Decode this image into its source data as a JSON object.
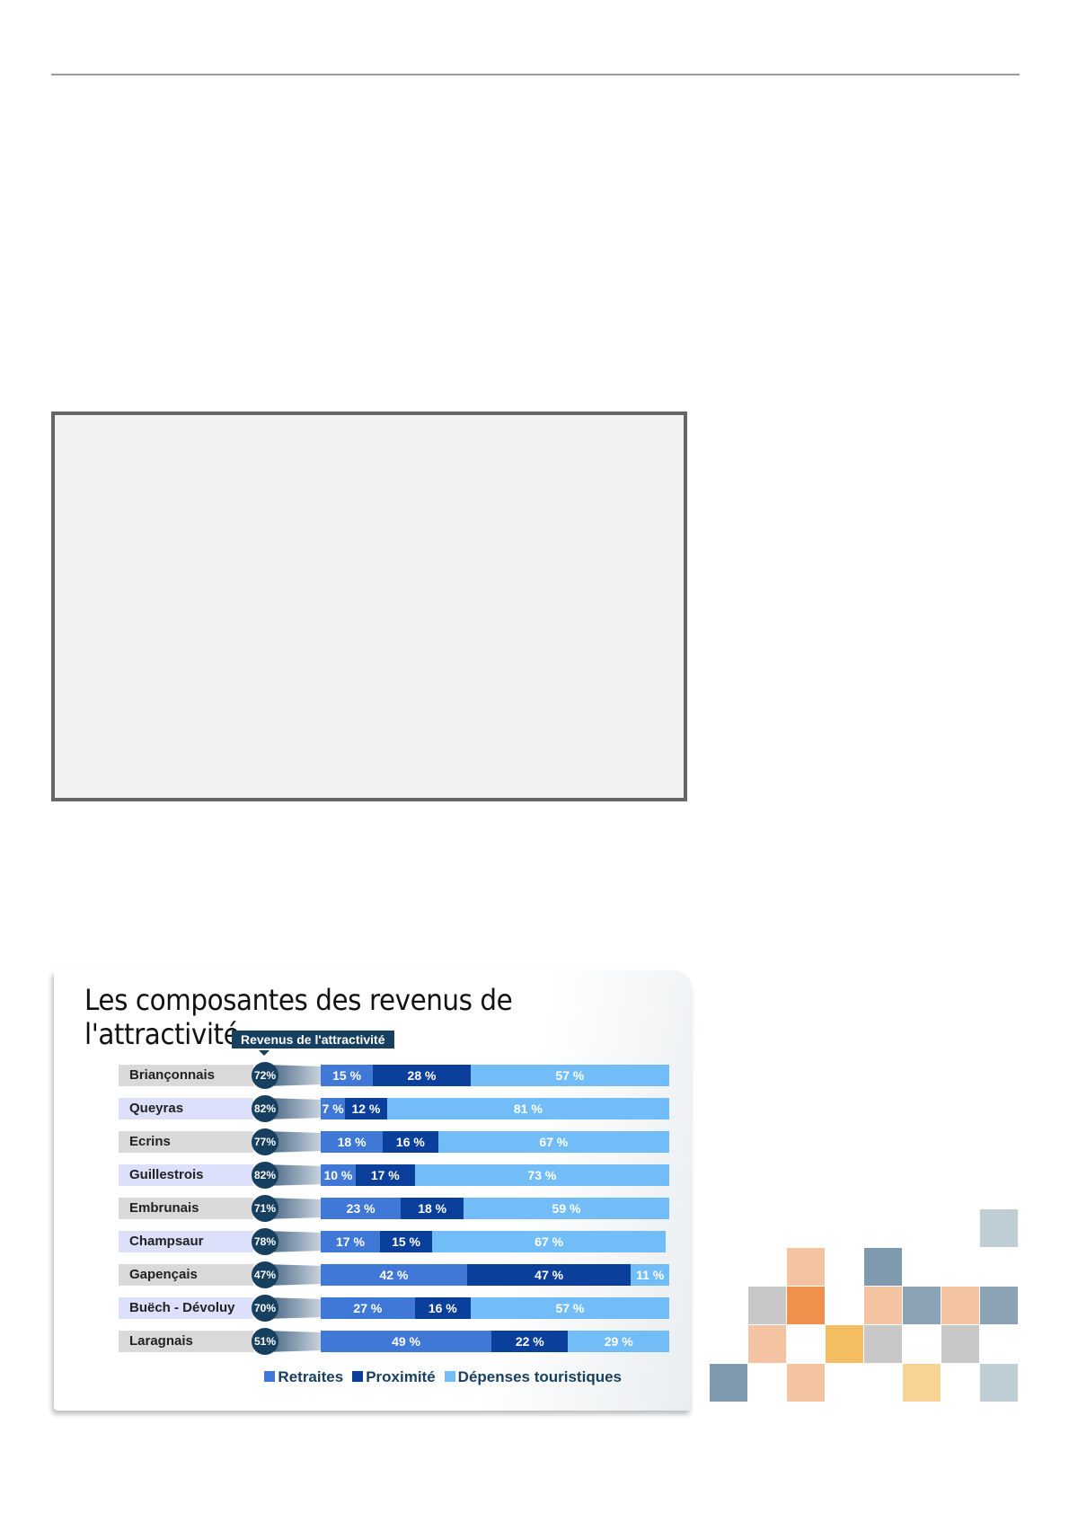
{
  "chart_data": {
    "type": "bar",
    "stacked": true,
    "orientation": "horizontal",
    "title": "Les composantes des revenus de l'attractivité",
    "badge_label": "Revenus de l'attractivité",
    "categories": [
      "Briançonnais",
      "Queyras",
      "Ecrins",
      "Guillestrois",
      "Embrunais",
      "Champsaur",
      "Gapençais",
      "Buëch - Dévoluy",
      "Laragnais"
    ],
    "attractivite": [
      "72%",
      "82%",
      "77%",
      "82%",
      "71%",
      "78%",
      "47%",
      "70%",
      "51%"
    ],
    "series": [
      {
        "name": "Retraites",
        "color": "#3f78d6",
        "values": [
          15,
          7,
          18,
          10,
          23,
          17,
          42,
          27,
          49
        ]
      },
      {
        "name": "Proximité",
        "color": "#0b3f9c",
        "values": [
          28,
          12,
          16,
          17,
          18,
          15,
          47,
          16,
          22
        ]
      },
      {
        "name": "Dépenses touristiques",
        "color": "#72bdf7",
        "values": [
          57,
          81,
          67,
          73,
          59,
          67,
          11,
          57,
          29
        ]
      }
    ],
    "legend": "bottom-right",
    "xlim": [
      0,
      100
    ]
  },
  "decor_colors": [
    "#bfcdd5",
    "#f4c3a2",
    "#7f9aae",
    "#c8c8c8",
    "#f0904d",
    "#8ba3b5",
    "#f4bd62",
    "#f7d394"
  ]
}
